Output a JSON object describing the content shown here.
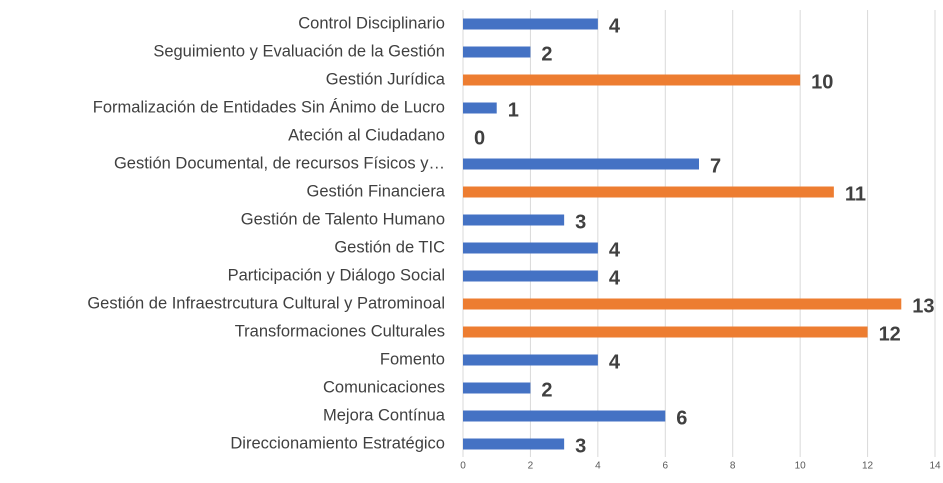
{
  "chart_data": {
    "type": "barh",
    "categories": [
      "Control Disciplinario",
      "Seguimiento y Evaluación de la Gestión",
      "Gestión Jurídica",
      "Formalización de Entidades Sin Ánimo de Lucro",
      "Ateción al Ciudadano",
      "Gestión Documental, de recursos Físicos y…",
      "Gestión Financiera",
      "Gestión de Talento Humano",
      "Gestión de TIC",
      "Participación y Diálogo Social",
      "Gestión de Infraestrcutura Cultural y Patrominoal",
      "Transformaciones Culturales",
      "Fomento",
      "Comunicaciones",
      "Mejora Contínua",
      "Direccionamiento Estratégico"
    ],
    "values": [
      4,
      2,
      10,
      1,
      0,
      7,
      11,
      3,
      4,
      4,
      13,
      12,
      4,
      2,
      6,
      3
    ],
    "colors": [
      "#4472c4",
      "#4472c4",
      "#ed7d31",
      "#4472c4",
      "#4472c4",
      "#4472c4",
      "#ed7d31",
      "#4472c4",
      "#4472c4",
      "#4472c4",
      "#ed7d31",
      "#ed7d31",
      "#4472c4",
      "#4472c4",
      "#4472c4",
      "#4472c4"
    ],
    "xlim": [
      0,
      14
    ],
    "xticks": [
      0,
      2,
      4,
      6,
      8,
      10,
      12,
      14
    ],
    "grid": true
  }
}
